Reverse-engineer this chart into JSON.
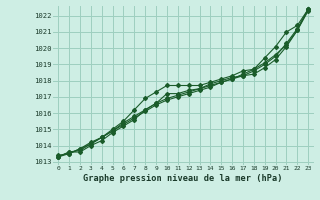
{
  "title": "Graphe pression niveau de la mer (hPa)",
  "bg_color": "#ceeee4",
  "grid_color": "#9ecfbf",
  "line_color": "#1a5c2a",
  "x_ticks": [
    0,
    1,
    2,
    3,
    4,
    5,
    6,
    7,
    8,
    9,
    10,
    11,
    12,
    13,
    14,
    15,
    16,
    17,
    18,
    19,
    20,
    21,
    22,
    23
  ],
  "ylim": [
    1012.8,
    1022.6
  ],
  "yticks": [
    1013,
    1014,
    1015,
    1016,
    1017,
    1018,
    1019,
    1020,
    1021,
    1022
  ],
  "series": [
    [
      1013.3,
      1013.6,
      1013.6,
      1014.0,
      1014.3,
      1014.8,
      1015.2,
      1015.6,
      1016.2,
      1016.6,
      1017.2,
      1017.2,
      1017.4,
      1017.5,
      1017.8,
      1018.0,
      1018.2,
      1018.3,
      1018.4,
      1018.8,
      1019.3,
      1020.1,
      1021.1,
      1022.4
    ],
    [
      1013.4,
      1013.5,
      1013.8,
      1014.2,
      1014.5,
      1014.9,
      1015.4,
      1015.8,
      1016.2,
      1016.6,
      1016.9,
      1017.1,
      1017.3,
      1017.5,
      1017.7,
      1017.9,
      1018.1,
      1018.3,
      1018.6,
      1019.0,
      1019.5,
      1020.3,
      1021.2,
      1022.4
    ],
    [
      1013.3,
      1013.5,
      1013.8,
      1014.1,
      1014.5,
      1014.9,
      1015.3,
      1015.7,
      1016.1,
      1016.5,
      1016.8,
      1017.0,
      1017.2,
      1017.4,
      1017.6,
      1017.9,
      1018.1,
      1018.4,
      1018.7,
      1019.1,
      1019.6,
      1020.2,
      1021.1,
      1022.3
    ]
  ],
  "series_top": [
    1013.3,
    1013.6,
    1013.7,
    1014.1,
    1014.5,
    1015.0,
    1015.5,
    1016.2,
    1016.9,
    1017.3,
    1017.7,
    1017.7,
    1017.7,
    1017.7,
    1017.9,
    1018.1,
    1018.3,
    1018.6,
    1018.7,
    1019.4,
    1020.1,
    1021.0,
    1021.4,
    1022.4
  ]
}
